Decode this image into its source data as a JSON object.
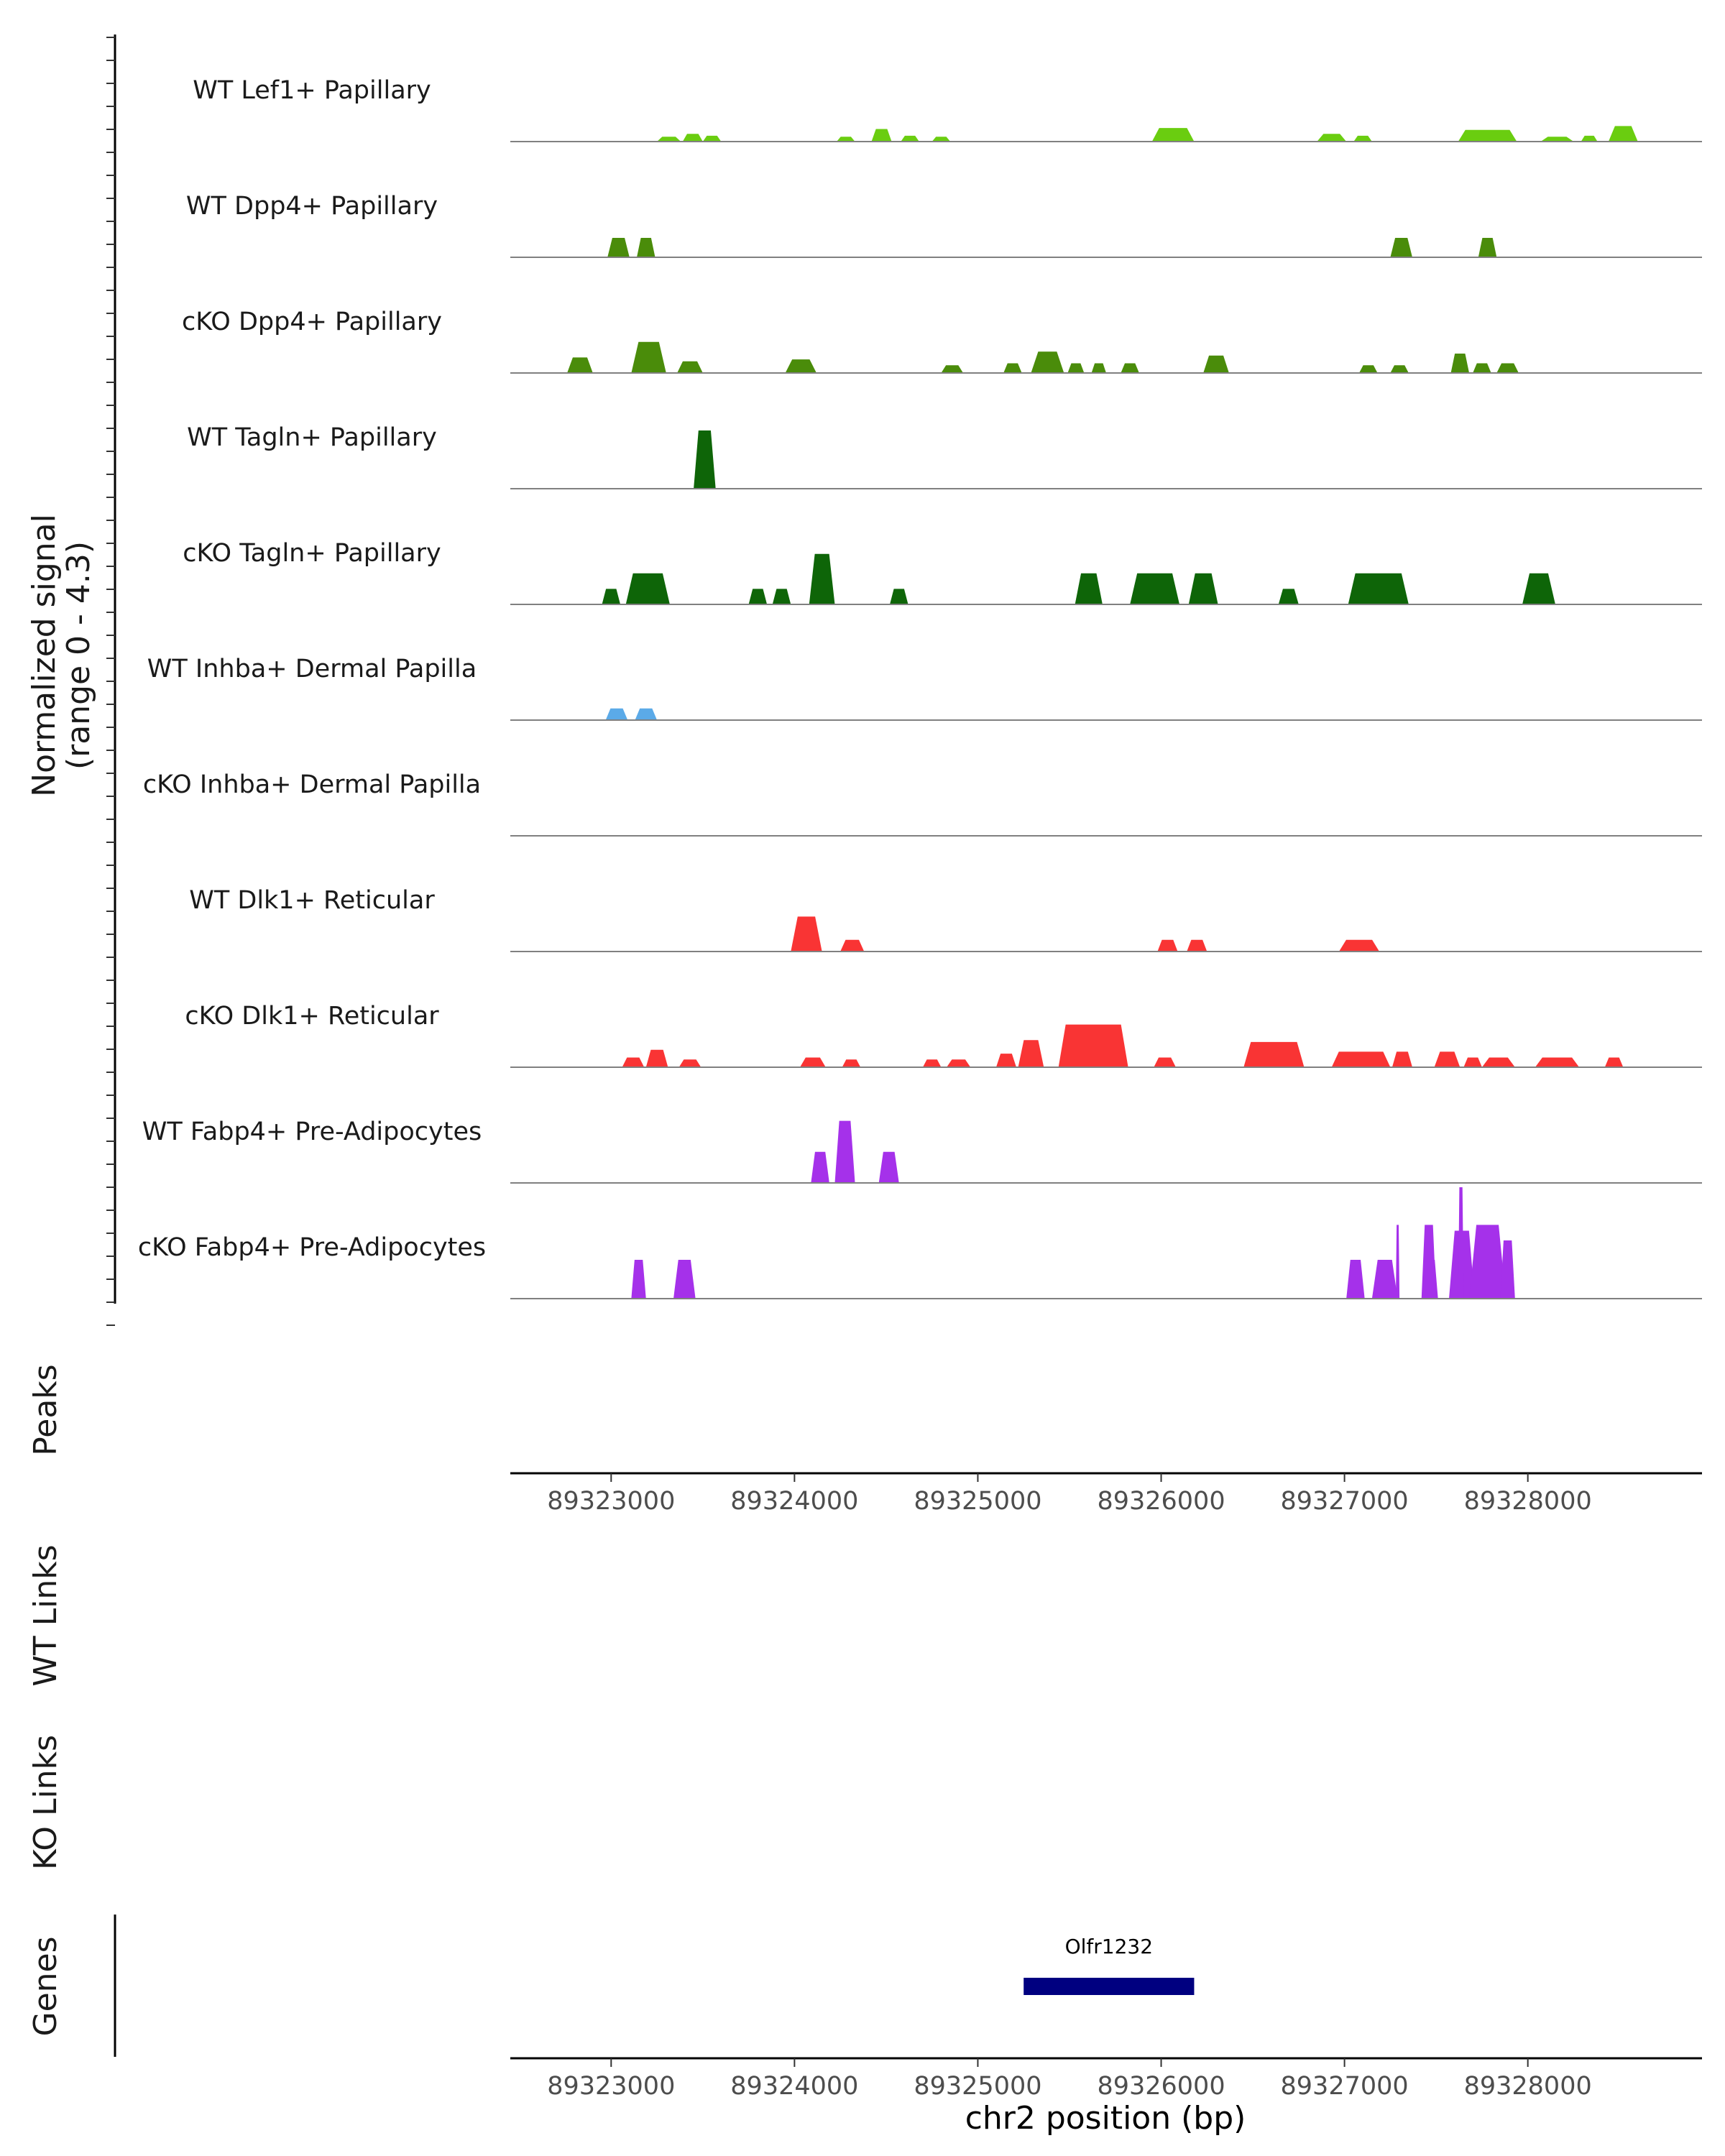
{
  "chart_data": {
    "type": "area",
    "title": "",
    "signal_ylabel": "Normalized signal",
    "signal_range": "(range 0 - 4.3)",
    "signal_ylim": [
      0,
      4.3
    ],
    "xlabel": "chr2 position (bp)",
    "xlim": [
      89322450,
      89328950
    ],
    "xticks": [
      89323000,
      89324000,
      89325000,
      89326000,
      89327000,
      89328000
    ],
    "xtick_labels": [
      "89323000",
      "89324000",
      "89325000",
      "89326000",
      "89327000",
      "89328000"
    ],
    "tracks": [
      {
        "name": "WT Lef1+ Papillary",
        "color": "#6ACD10",
        "regions": [
          [
            89323250,
            89323380,
            0.25
          ],
          [
            89323390,
            89323500,
            0.4
          ],
          [
            89323500,
            89323600,
            0.3
          ],
          [
            89324230,
            89324330,
            0.25
          ],
          [
            89324420,
            89324530,
            0.65
          ],
          [
            89324580,
            89324680,
            0.3
          ],
          [
            89324750,
            89324850,
            0.25
          ],
          [
            89325950,
            89326180,
            0.7
          ],
          [
            89326850,
            89327010,
            0.4
          ],
          [
            89327050,
            89327150,
            0.3
          ],
          [
            89327620,
            89327940,
            0.6
          ],
          [
            89328070,
            89328250,
            0.25
          ],
          [
            89328290,
            89328380,
            0.3
          ],
          [
            89328440,
            89328600,
            0.8
          ]
        ]
      },
      {
        "name": "WT Dpp4+ Papillary",
        "color": "#4A8C0A",
        "regions": [
          [
            89322980,
            89323100,
            1.0
          ],
          [
            89323140,
            89323240,
            1.0
          ],
          [
            89327250,
            89327370,
            1.0
          ],
          [
            89327730,
            89327830,
            1.0
          ]
        ]
      },
      {
        "name": "cKO Dpp4+ Papillary",
        "color": "#4A8C0A",
        "regions": [
          [
            89322760,
            89322900,
            0.8
          ],
          [
            89323110,
            89323300,
            1.6
          ],
          [
            89323360,
            89323500,
            0.6
          ],
          [
            89323950,
            89324120,
            0.7
          ],
          [
            89324800,
            89324920,
            0.4
          ],
          [
            89325140,
            89325240,
            0.5
          ],
          [
            89325290,
            89325470,
            1.1
          ],
          [
            89325490,
            89325580,
            0.5
          ],
          [
            89325620,
            89325700,
            0.5
          ],
          [
            89325780,
            89325880,
            0.5
          ],
          [
            89326230,
            89326370,
            0.9
          ],
          [
            89327080,
            89327180,
            0.4
          ],
          [
            89327250,
            89327350,
            0.4
          ],
          [
            89327580,
            89327680,
            1.0
          ],
          [
            89327700,
            89327800,
            0.5
          ],
          [
            89327830,
            89327950,
            0.5
          ]
        ]
      },
      {
        "name": "WT Tagln+ Papillary",
        "color": "#0E6508",
        "regions": [
          [
            89323450,
            89323570,
            3.0
          ]
        ]
      },
      {
        "name": "cKO Tagln+ Papillary",
        "color": "#0E6508",
        "regions": [
          [
            89322950,
            89323050,
            0.8
          ],
          [
            89323080,
            89323320,
            1.6
          ],
          [
            89323750,
            89323850,
            0.8
          ],
          [
            89323880,
            89323980,
            0.8
          ],
          [
            89324080,
            89324220,
            2.6
          ],
          [
            89324520,
            89324620,
            0.8
          ],
          [
            89325530,
            89325680,
            1.6
          ],
          [
            89325830,
            89326100,
            1.6
          ],
          [
            89326150,
            89326310,
            1.6
          ],
          [
            89326640,
            89326750,
            0.8
          ],
          [
            89327020,
            89327350,
            1.6
          ],
          [
            89327970,
            89328150,
            1.6
          ]
        ]
      },
      {
        "name": "WT Inhba+ Dermal Papilla",
        "color": "#5BAAE8",
        "regions": [
          [
            89322970,
            89323090,
            0.6
          ],
          [
            89323130,
            89323250,
            0.6
          ]
        ]
      },
      {
        "name": "cKO Inhba+ Dermal Papilla",
        "color": "#F93434",
        "regions": []
      },
      {
        "name": "WT Dlk1+ Reticular",
        "color": "#F93434",
        "regions": [
          [
            89323980,
            89324150,
            1.8
          ],
          [
            89324250,
            89324380,
            0.6
          ],
          [
            89325980,
            89326090,
            0.6
          ],
          [
            89326140,
            89326250,
            0.6
          ],
          [
            89326970,
            89327190,
            0.6
          ]
        ]
      },
      {
        "name": "cKO Dlk1+ Reticular",
        "color": "#F93434",
        "regions": [
          [
            89323060,
            89323180,
            0.5
          ],
          [
            89323190,
            89323310,
            0.9
          ],
          [
            89323370,
            89323490,
            0.4
          ],
          [
            89324030,
            89324170,
            0.5
          ],
          [
            89324260,
            89324360,
            0.4
          ],
          [
            89324700,
            89324800,
            0.4
          ],
          [
            89324830,
            89324960,
            0.4
          ],
          [
            89325100,
            89325210,
            0.7
          ],
          [
            89325220,
            89325360,
            1.4
          ],
          [
            89325440,
            89325820,
            2.2
          ],
          [
            89325960,
            89326080,
            0.5
          ],
          [
            89326450,
            89326780,
            1.3
          ],
          [
            89326930,
            89327250,
            0.8
          ],
          [
            89327260,
            89327370,
            0.8
          ],
          [
            89327490,
            89327630,
            0.8
          ],
          [
            89327650,
            89327750,
            0.5
          ],
          [
            89327750,
            89327930,
            0.5
          ],
          [
            89328040,
            89328280,
            0.5
          ],
          [
            89328420,
            89328520,
            0.5
          ]
        ]
      },
      {
        "name": "WT Fabp4+ Pre-Adipocytes",
        "color": "#A531EA",
        "regions": [
          [
            89324090,
            89324190,
            1.6
          ],
          [
            89324220,
            89324330,
            3.2
          ],
          [
            89324460,
            89324570,
            1.6
          ]
        ]
      },
      {
        "name": "cKO Fabp4+ Pre-Adipocytes",
        "color": "#A531EA",
        "regions": [
          [
            89323110,
            89323190,
            2.0
          ],
          [
            89323340,
            89323460,
            2.0
          ],
          [
            89327010,
            89327110,
            2.0
          ],
          [
            89327150,
            89327290,
            2.0
          ],
          [
            89327280,
            89327300,
            3.8
          ],
          [
            89327430,
            89327510,
            2.0
          ],
          [
            89327420,
            89327500,
            3.8
          ],
          [
            89327570,
            89327710,
            3.5
          ],
          [
            89327620,
            89327650,
            5.8
          ],
          [
            89327680,
            89327880,
            3.8
          ],
          [
            89327850,
            89327930,
            3.0
          ]
        ]
      }
    ],
    "peaks_label": "Peaks",
    "wt_links_label": "WT Links",
    "ko_links_label": "KO Links",
    "genes_label": "Genes",
    "genes": [
      {
        "name": "Olfr1232",
        "start": 89325250,
        "end": 89326180,
        "color": "#000080"
      }
    ]
  }
}
